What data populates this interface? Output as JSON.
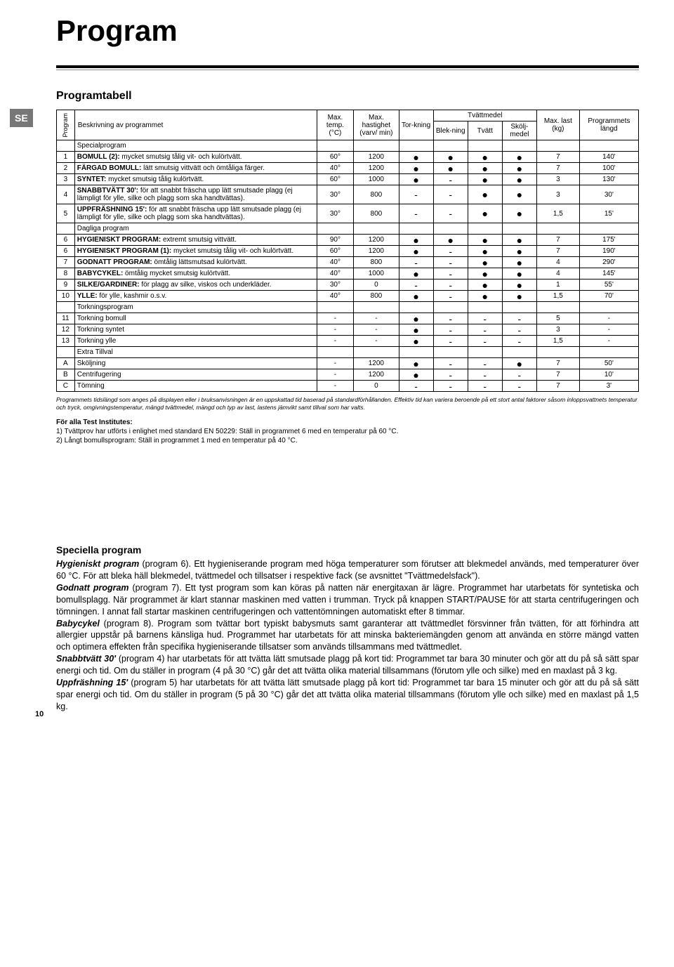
{
  "lang_badge": "SE",
  "page_title": "Program",
  "subtitle": "Programtabell",
  "page_number": "10",
  "headers": {
    "program": "Program",
    "description": "Beskrivning av programmet",
    "max_temp": "Max. temp. (°C)",
    "max_speed": "Max. hastighet (varv/ min)",
    "drying": "Tor-kning",
    "detergent_group": "Tvättmedel",
    "bleach": "Blek-ning",
    "wash": "Tvätt",
    "softener": "Skölj-medel",
    "max_load": "Max. last (kg)",
    "duration": "Programmets längd"
  },
  "sections": {
    "special": "Specialprogram",
    "daily": "Dagliga program",
    "drying": "Torkningsprogram",
    "extra": "Extra Tillval"
  },
  "dot": "●",
  "dash": "-",
  "rows": [
    {
      "n": "1",
      "d": "<b>BOMULL (2):</b> mycket smutsig tålig vit- och kulörtvätt.",
      "t": "60°",
      "s": "1200",
      "dry": "●",
      "b": "●",
      "w": "●",
      "sk": "●",
      "l": "7",
      "len": "140'"
    },
    {
      "n": "2",
      "d": "<b>FÄRGAD BOMULL:</b> lätt smutsig vittvätt och ömtåliga färger.",
      "t": "40°",
      "s": "1200",
      "dry": "●",
      "b": "●",
      "w": "●",
      "sk": "●",
      "l": "7",
      "len": "100'"
    },
    {
      "n": "3",
      "d": "<b>SYNTET:</b> mycket smutsig tålig kulörtvätt.",
      "t": "60°",
      "s": "1000",
      "dry": "●",
      "b": "-",
      "w": "●",
      "sk": "●",
      "l": "3",
      "len": "130'"
    },
    {
      "n": "4",
      "d": "<b>SNABBTVÄTT 30':</b> för att snabbt fräscha upp lätt smutsade plagg (ej lämpligt för ylle, silke och plagg som ska handtvättas).",
      "t": "30°",
      "s": "800",
      "dry": "-",
      "b": "-",
      "w": "●",
      "sk": "●",
      "l": "3",
      "len": "30'"
    },
    {
      "n": "5",
      "d": "<b>UPPFRÄSHNING 15':</b> för att snabbt fräscha upp lätt smutsade plagg (ej lämpligt för ylle, silke och plagg som ska handtvättas).",
      "t": "30°",
      "s": "800",
      "dry": "-",
      "b": "-",
      "w": "●",
      "sk": "●",
      "l": "1,5",
      "len": "15'"
    }
  ],
  "rows_daily": [
    {
      "n": "6",
      "d": "<b>HYGIENISKT PROGRAM:</b> extremt smutsig vittvätt.",
      "t": "90°",
      "s": "1200",
      "dry": "●",
      "b": "●",
      "w": "●",
      "sk": "●",
      "l": "7",
      "len": "175'"
    },
    {
      "n": "6",
      "d": "<b>HYGIENISKT PROGRAM (1):</b> mycket smutsig tålig vit- och kulörtvätt.",
      "t": "60°",
      "s": "1200",
      "dry": "●",
      "b": "-",
      "w": "●",
      "sk": "●",
      "l": "7",
      "len": "190'"
    },
    {
      "n": "7",
      "d": "<b>GODNATT PROGRAM:</b> ömtålig lättsmutsad kulörtvätt.",
      "t": "40°",
      "s": "800",
      "dry": "-",
      "b": "-",
      "w": "●",
      "sk": "●",
      "l": "4",
      "len": "290'"
    },
    {
      "n": "8",
      "d": "<b>BABYCYKEL:</b> ömtålig mycket smutsig kulörtvätt.",
      "t": "40°",
      "s": "1000",
      "dry": "●",
      "b": "-",
      "w": "●",
      "sk": "●",
      "l": "4",
      "len": "145'"
    },
    {
      "n": "9",
      "d": "<b>SILKE/GARDINER:</b> för plagg av silke, viskos och underkläder.",
      "t": "30°",
      "s": "0",
      "dry": "-",
      "b": "-",
      "w": "●",
      "sk": "●",
      "l": "1",
      "len": "55'"
    },
    {
      "n": "10",
      "d": "<b>YLLE:</b> för ylle, kashmir o.s.v.",
      "t": "40°",
      "s": "800",
      "dry": "●",
      "b": "-",
      "w": "●",
      "sk": "●",
      "l": "1,5",
      "len": "70'"
    }
  ],
  "rows_drying": [
    {
      "n": "11",
      "d": "Torkning bomull",
      "t": "-",
      "s": "-",
      "dry": "●",
      "b": "-",
      "w": "-",
      "sk": "-",
      "l": "5",
      "len": "-"
    },
    {
      "n": "12",
      "d": "Torkning syntet",
      "t": "-",
      "s": "-",
      "dry": "●",
      "b": "-",
      "w": "-",
      "sk": "-",
      "l": "3",
      "len": "-"
    },
    {
      "n": "13",
      "d": "Torkning ylle",
      "t": "-",
      "s": "-",
      "dry": "●",
      "b": "-",
      "w": "-",
      "sk": "-",
      "l": "1,5",
      "len": "-"
    }
  ],
  "rows_extra": [
    {
      "n": "A",
      "d": "Sköljning",
      "t": "-",
      "s": "1200",
      "dry": "●",
      "b": "-",
      "w": "-",
      "sk": "●",
      "l": "7",
      "len": "50'"
    },
    {
      "n": "B",
      "d": "Centrifugering",
      "t": "-",
      "s": "1200",
      "dry": "●",
      "b": "-",
      "w": "-",
      "sk": "-",
      "l": "7",
      "len": "10'"
    },
    {
      "n": "C",
      "d": "Tömning",
      "t": "-",
      "s": "0",
      "dry": "-",
      "b": "-",
      "w": "-",
      "sk": "-",
      "l": "7",
      "len": "3'"
    }
  ],
  "footnote": "Programmets tidslängd som anges på displayen eller i bruksanvisningen är en uppskattad tid baserad på standardförhållanden. Effektiv tid kan variera beroende på ett stort antal faktorer såsom inloppsvattnets temperatur och tryck, omgivningstemperatur, mängd tvättmedel, mängd och typ av last, lastens jämvikt samt tillval som har valts.",
  "test_title": "För alla Test Institutes:",
  "test_line1": "1) Tvättprov har utförts i enlighet med standard EN 50229: Ställ in programmet 6 med en temperatur på 60 °C.",
  "test_line2": "2) Långt bomullsprogram: Ställ in programmet 1 med en temperatur på 40 °C.",
  "special_heading": "Speciella program",
  "paragraphs": {
    "p1a": "Hygieniskt program",
    "p1b": " (program 6). Ett hygieniserande program med höga temperaturer som förutser att blekmedel används, med temperaturer över 60 °C. För att bleka häll blekmedel, tvättmedel och tillsatser i respektive fack (se avsnittet \"Tvättmedelsfack\").",
    "p2a": "Godnatt program",
    "p2b": " (program 7). Ett tyst program som kan köras på natten när energitaxan är lägre. Programmet har utarbetats för syntetiska och bomullsplagg. När programmet är klart stannar maskinen med vatten i trumman. Tryck på knappen START/PAUSE för att starta centrifugeringen och tömningen. I annat fall startar maskinen centrifugeringen och vattentömningen automatiskt efter 8 timmar.",
    "p3a": "Babycykel",
    "p3b": " (program 8). Program som tvättar bort typiskt babysmuts samt garanterar att tvättmedlet försvinner från tvätten, för att förhindra att allergier uppstår på barnens känsliga hud. Programmet har utarbetats för att minska bakteriemängden genom att använda en större mängd vatten och optimera effekten från specifika hygieniserande tillsatser som används tillsammans med tvättmedlet.",
    "p4a": "Snabbtvätt 30'",
    "p4b": " (program 4) har utarbetats för att tvätta lätt smutsade plagg på kort tid: Programmet tar bara 30 minuter och gör att du på så sätt spar energi och tid. Om du ställer in program (4 på 30 °C) går det att tvätta olika material tillsammans (förutom ylle och silke) med en maxlast på 3 kg.",
    "p5a": "Uppfräshning 15'",
    "p5b": " (program 5) har utarbetats för att tvätta lätt smutsade plagg på kort tid: Programmet tar bara 15 minuter och gör att du på så sätt spar energi och tid. Om du ställer in program (5 på 30 °C) går det att tvätta olika material tillsammans (förutom ylle och silke) med en maxlast på 1,5 kg."
  }
}
